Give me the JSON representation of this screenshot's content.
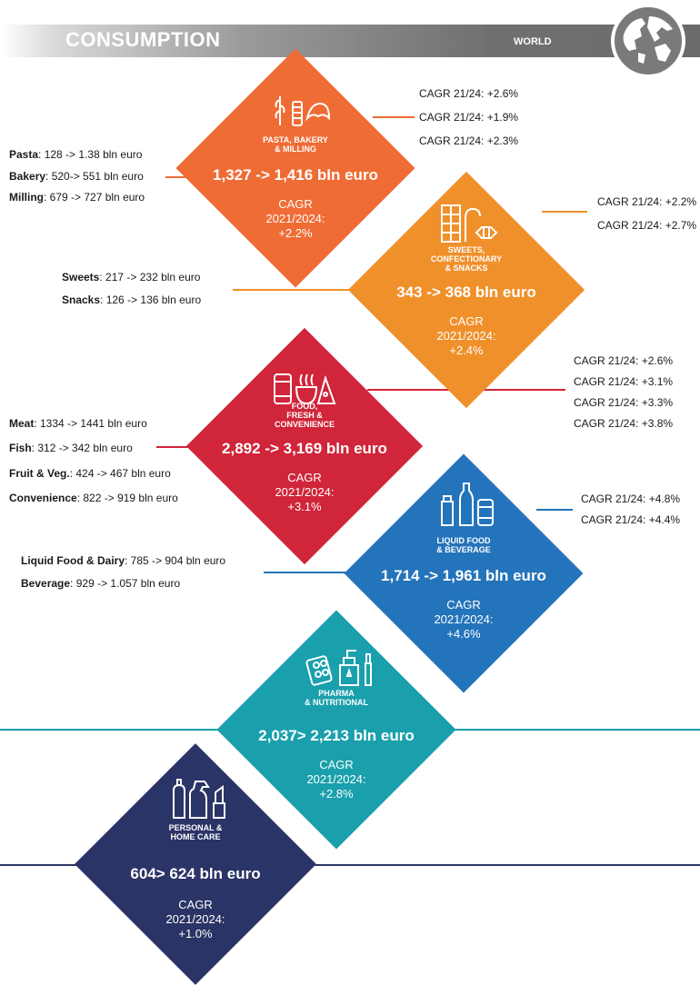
{
  "header": {
    "title": "CONSUMPTION",
    "region": "WORLD"
  },
  "segments": [
    {
      "label": [
        "PASTA, BAKERY",
        "& MILLING"
      ],
      "value": "1,327 -> 1,416 bln euro",
      "cagr": [
        "CAGR",
        "2021/2024:",
        "+2.2%"
      ],
      "color": "#ef6c35",
      "left_items": [
        {
          "name": "Pasta",
          "value": ": 128 -> 1.38 bln euro"
        },
        {
          "name": "Bakery",
          "value": ": 520-> 551 bln euro"
        },
        {
          "name": "Milling",
          "value": ": 679 -> 727 bln euro"
        }
      ],
      "right_cagr": [
        "CAGR 21/24: +2.6%",
        "CAGR 21/24: +1.9%",
        "CAGR 21/24: +2.3%"
      ]
    },
    {
      "label": [
        "SWEETS,",
        "CONFECTIONARY",
        "& SNACKS"
      ],
      "value": "343 -> 368 bln euro",
      "cagr": [
        "CAGR",
        "2021/2024:",
        "+2.4%"
      ],
      "color": "#f0902a",
      "left_items": [
        {
          "name": "Sweets",
          "value": ": 217 -> 232 bln euro"
        },
        {
          "name": "Snacks",
          "value": ": 126 -> 136 bln euro"
        }
      ],
      "right_cagr": [
        "CAGR 21/24: +2.2%",
        "CAGR 21/24: +2.7%"
      ]
    },
    {
      "label": [
        "FOOD,",
        "FRESH &",
        "CONVENIENCE"
      ],
      "value": "2,892 -> 3,169 bln euro",
      "cagr": [
        "CAGR",
        "2021/2024:",
        "+3.1%"
      ],
      "color": "#d0253a",
      "left_items": [
        {
          "name": "Meat",
          "value": ": 1334 -> 1441 bln euro"
        },
        {
          "name": "Fish",
          "value": ": 312 -> 342 bln euro"
        },
        {
          "name": "Fruit & Veg.",
          "value": ": 424 -> 467 bln euro"
        },
        {
          "name": "Convenience",
          "value": ": 822 -> 919 bln euro"
        }
      ],
      "right_cagr": [
        "CAGR 21/24: +2.6%",
        "CAGR 21/24: +3.1%",
        "CAGR 21/24: +3.3%",
        "CAGR 21/24: +3.8%"
      ]
    },
    {
      "label": [
        "LIQUID FOOD",
        "& BEVERAGE"
      ],
      "value": "1,714 -> 1,961 bln euro",
      "cagr": [
        "CAGR",
        "2021/2024:",
        "+4.6%"
      ],
      "color": "#2474bb",
      "left_items": [
        {
          "name": "Liquid Food & Dairy",
          "value": ": 785 -> 904 bln euro"
        },
        {
          "name": "Beverage",
          "value": ": 929 -> 1.057 bln euro"
        }
      ],
      "right_cagr": [
        "CAGR 21/24: +4.8%",
        "CAGR 21/24: +4.4%"
      ]
    },
    {
      "label": [
        "PHARMA",
        "& NUTRITIONAL"
      ],
      "value": "2,037> 2,213 bln euro",
      "cagr": [
        "CAGR",
        "2021/2024:",
        "+2.8%"
      ],
      "color": "#1aa0ac"
    },
    {
      "label": [
        "PERSONAL &",
        "HOME CARE"
      ],
      "value": "604> 624 bln euro",
      "cagr": [
        "CAGR",
        "2021/2024:",
        "+1.0%"
      ],
      "color": "#2b3466"
    }
  ]
}
